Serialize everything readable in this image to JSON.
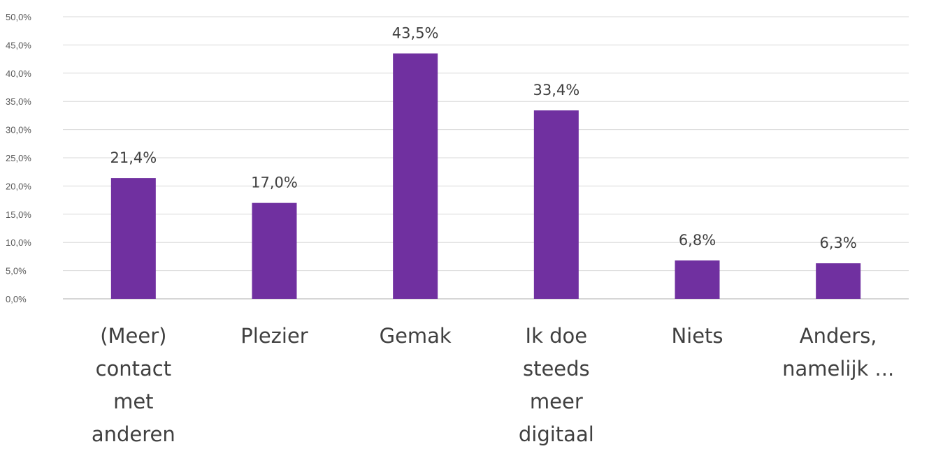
{
  "chart_data": {
    "type": "bar",
    "categories": [
      [
        "(Meer)",
        "contact",
        "met",
        "anderen"
      ],
      [
        "Plezier"
      ],
      [
        "Gemak"
      ],
      [
        "Ik doe",
        "steeds",
        "meer",
        "digitaal"
      ],
      [
        "Niets"
      ],
      [
        "Anders,",
        "namelijk ..."
      ]
    ],
    "values": [
      21.4,
      17.0,
      43.5,
      33.4,
      6.8,
      6.3
    ],
    "data_labels": [
      "21,4%",
      "17,0%",
      "43,5%",
      "33,4%",
      "6,8%",
      "6,3%"
    ],
    "y_ticks": [
      "0,0%",
      "5,0%",
      "10,0%",
      "15,0%",
      "20,0%",
      "25,0%",
      "30,0%",
      "35,0%",
      "40,0%",
      "45,0%",
      "50,0%"
    ],
    "ylim": [
      0,
      50
    ],
    "grid": true,
    "legend": "none",
    "title": "",
    "xlabel": "",
    "ylabel": "",
    "bar_color": "#7030a0"
  }
}
